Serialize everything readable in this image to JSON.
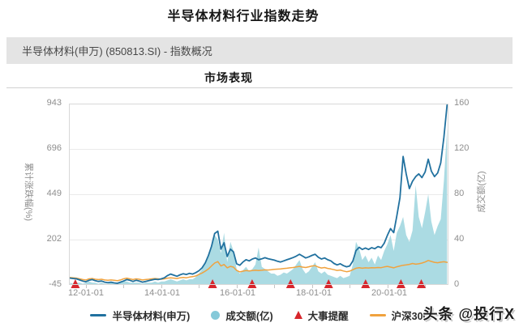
{
  "title": "半导体材料行业指数走势",
  "header": {
    "text": "半导体材料(申万) (850813.SI) - 指数概况"
  },
  "watermark": {
    "text": "头条 @投行X"
  },
  "chart_data": {
    "type": "line",
    "title": "市场表现",
    "x_range": [
      2011.55,
      2021.62
    ],
    "series_start_year": 2011.5833,
    "series_step_years": 0.0833333,
    "x_axis": {
      "tick_labels": [
        "12-01-01",
        "14-01-01",
        "16-01-01",
        "18-01-01",
        "20-01-01"
      ],
      "tick_years": [
        2012,
        2014,
        2016,
        2018,
        2020
      ],
      "minor_tick_years": [
        2012,
        2013,
        2014,
        2015,
        2016,
        2017,
        2018,
        2019,
        2020,
        2021
      ]
    },
    "left_axis": {
      "label": "累计涨跌幅(%)",
      "min": -45,
      "max": 943,
      "ticks": [
        "943",
        "696",
        "449",
        "202",
        "-45"
      ],
      "tick_values": [
        943,
        696,
        449,
        202,
        -45
      ],
      "grid_values": [
        696,
        449,
        202
      ]
    },
    "right_axis": {
      "label": "成交额(亿)",
      "min": 0,
      "max": 160,
      "ticks": [
        "160",
        "120",
        "80",
        "40",
        "0"
      ],
      "tick_values": [
        160,
        120,
        80,
        40,
        0
      ]
    },
    "colors": {
      "grid": "#eaeaea",
      "border": "#d8d8d8",
      "tick": "#c4c4c4"
    },
    "series": [
      {
        "name": "半导体材料(申万)",
        "type": "line",
        "axis": "left",
        "color": "#21719f",
        "width": 1.8,
        "values": [
          -8,
          -10,
          -12,
          -18,
          -24,
          -28,
          -20,
          -16,
          -22,
          -26,
          -24,
          -30,
          -33,
          -30,
          -34,
          -36,
          -30,
          -24,
          -16,
          -20,
          -26,
          -20,
          -24,
          -30,
          -26,
          -22,
          -18,
          -14,
          -16,
          -12,
          -6,
          6,
          14,
          8,
          2,
          10,
          16,
          12,
          18,
          14,
          22,
          32,
          48,
          75,
          115,
          165,
          235,
          248,
          150,
          185,
          110,
          150,
          135,
          70,
          62,
          80,
          92,
          86,
          96,
          102,
          92,
          97,
          103,
          98,
          94,
          90,
          84,
          80,
          86,
          92,
          98,
          104,
          112,
          122,
          112,
          102,
          108,
          116,
          122,
          106,
          96,
          102,
          92,
          86,
          72,
          64,
          70,
          60,
          54,
          58,
          85,
          142,
          160,
          148,
          156,
          148,
          158,
          152,
          164,
          158,
          182,
          225,
          262,
          240,
          330,
          430,
          655,
          560,
          480,
          520,
          545,
          560,
          540,
          570,
          640,
          575,
          545,
          565,
          620,
          760,
          935
        ]
      },
      {
        "name": "沪深300",
        "type": "line",
        "axis": "left",
        "color": "#f0a23e",
        "width": 1.5,
        "values": [
          -5,
          -6,
          -8,
          -12,
          -16,
          -18,
          -12,
          -10,
          -14,
          -16,
          -14,
          -18,
          -20,
          -18,
          -20,
          -22,
          -18,
          -12,
          -8,
          -12,
          -16,
          -12,
          -14,
          -18,
          -16,
          -14,
          -12,
          -10,
          -12,
          -14,
          -12,
          -8,
          -6,
          -8,
          -10,
          -6,
          -4,
          -6,
          -2,
          0,
          4,
          12,
          20,
          30,
          42,
          58,
          74,
          82,
          58,
          66,
          48,
          56,
          52,
          34,
          26,
          30,
          33,
          31,
          33,
          35,
          33,
          35,
          37,
          36,
          38,
          40,
          41,
          42,
          44,
          46,
          48,
          50,
          53,
          56,
          52,
          50,
          54,
          58,
          60,
          52,
          47,
          50,
          45,
          42,
          38,
          34,
          36,
          31,
          27,
          30,
          38,
          46,
          49,
          46,
          48,
          47,
          49,
          48,
          50,
          49,
          53,
          56,
          52,
          48,
          54,
          58,
          62,
          64,
          67,
          72,
          68,
          70,
          74,
          80,
          88,
          83,
          78,
          76,
          79,
          81,
          78
        ]
      },
      {
        "name": "成交额(亿)",
        "type": "area",
        "axis": "right",
        "color": "#a6d9e1",
        "opacity": 0.95,
        "values": [
          2,
          1,
          2,
          2,
          1,
          2,
          3,
          2,
          2,
          1,
          2,
          1,
          1,
          2,
          1,
          1,
          2,
          3,
          3,
          2,
          2,
          2,
          2,
          1,
          2,
          2,
          2,
          3,
          2,
          3,
          3,
          4,
          5,
          4,
          3,
          4,
          5,
          4,
          5,
          5,
          7,
          10,
          14,
          20,
          26,
          34,
          44,
          40,
          28,
          46,
          20,
          38,
          30,
          14,
          10,
          13,
          16,
          12,
          14,
          18,
          33,
          16,
          14,
          12,
          10,
          10,
          8,
          9,
          11,
          10,
          12,
          14,
          18,
          22,
          14,
          10,
          12,
          16,
          20,
          12,
          10,
          12,
          9,
          8,
          7,
          6,
          8,
          6,
          7,
          8,
          18,
          38,
          32,
          22,
          26,
          20,
          24,
          18,
          26,
          22,
          30,
          36,
          44,
          30,
          46,
          52,
          60,
          44,
          38,
          48,
          88,
          60,
          50,
          64,
          80,
          56,
          44,
          52,
          58,
          92,
          138
        ]
      }
    ],
    "events": {
      "name": "大事提醒",
      "color": "#d7262c",
      "years": [
        2011.72,
        2015.36,
        2016.41,
        2017.43,
        2018.44,
        2019.42,
        2020.36,
        2020.9
      ]
    },
    "legend": [
      {
        "label": "半导体材料(申万)",
        "marker": "line",
        "color": "#21719f"
      },
      {
        "label": "成交额(亿)",
        "marker": "dot",
        "color": "#85c9d9"
      },
      {
        "label": "大事提醒",
        "marker": "triangle",
        "color": "#d7262c"
      },
      {
        "label": "沪深300",
        "marker": "line",
        "color": "#f0a23e"
      }
    ]
  }
}
